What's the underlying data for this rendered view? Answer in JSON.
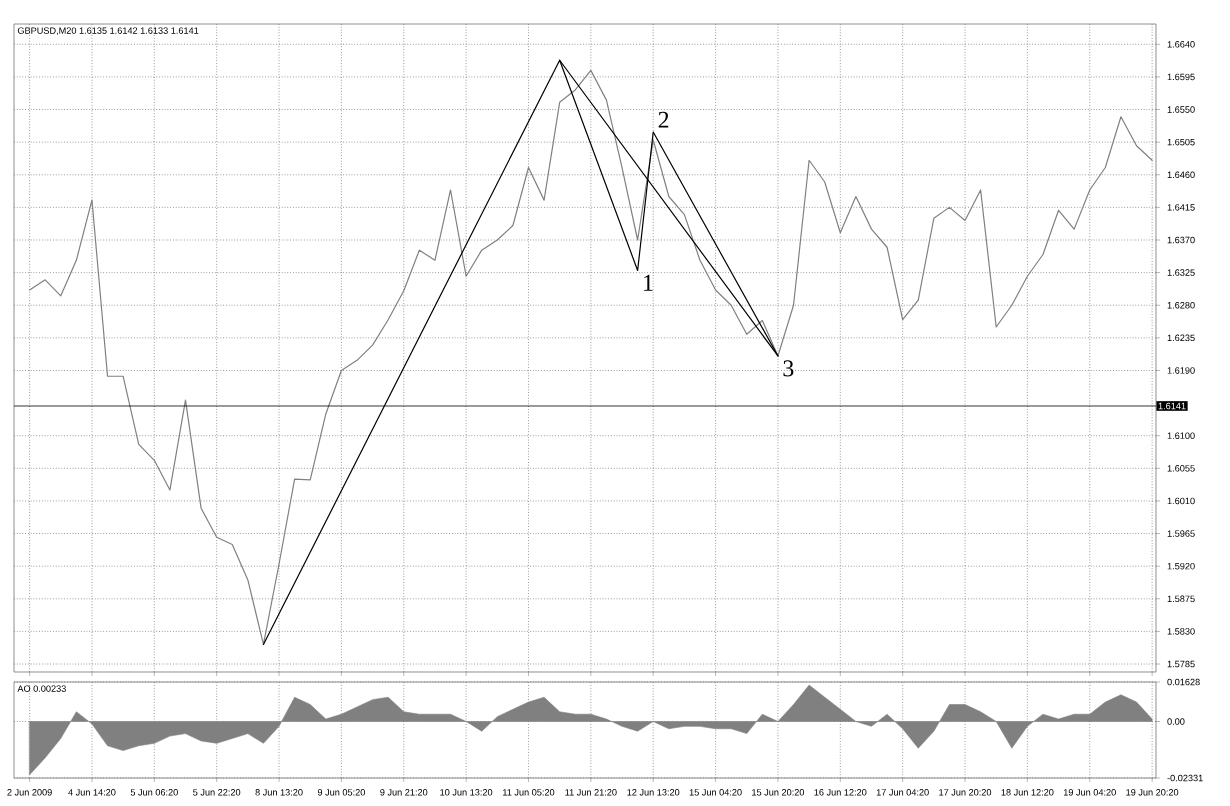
{
  "chart_data": [
    {
      "type": "line",
      "title": "GBPUSD,M20  1.6135 1.6142 1.6133 1.6141",
      "ylim": [
        1.5774,
        1.6668
      ],
      "grid": true,
      "tick_labels": "y",
      "categories": [
        null,
        null,
        null,
        null,
        null,
        null,
        null,
        null,
        null,
        null,
        null,
        null,
        null,
        null,
        null,
        null,
        null,
        null,
        null,
        null,
        null,
        null,
        null,
        null,
        null,
        null,
        null,
        null,
        null,
        null,
        null,
        null,
        null,
        null,
        null,
        null,
        null,
        null,
        null,
        null,
        null,
        null,
        null,
        null,
        null,
        null,
        null,
        null,
        null,
        null,
        null,
        null,
        null,
        null,
        null,
        null,
        null,
        null,
        null,
        null,
        null,
        null,
        null,
        null,
        null,
        null,
        null,
        null,
        null,
        null,
        null,
        null,
        null
      ],
      "yticks": [
        {
          "value": 1.664,
          "label": "1.6640"
        },
        {
          "value": 1.6595,
          "label": "1.6595"
        },
        {
          "value": 1.655,
          "label": "1.6550"
        },
        {
          "value": 1.6505,
          "label": "1.6505"
        },
        {
          "value": 1.646,
          "label": "1.6460"
        },
        {
          "value": 1.6415,
          "label": "1.6415"
        },
        {
          "value": 1.637,
          "label": "1.6370"
        },
        {
          "value": 1.6325,
          "label": "1.6325"
        },
        {
          "value": 1.628,
          "label": "1.6280"
        },
        {
          "value": 1.6235,
          "label": "1.6235"
        },
        {
          "value": 1.619,
          "label": "1.6190"
        },
        {
          "value": 1.61,
          "label": "1.6100"
        },
        {
          "value": 1.6055,
          "label": "1.6055"
        },
        {
          "value": 1.601,
          "label": "1.6010"
        },
        {
          "value": 1.5965,
          "label": "1.5965"
        },
        {
          "value": 1.592,
          "label": "1.5920"
        },
        {
          "value": 1.5875,
          "label": "1.5875"
        },
        {
          "value": 1.583,
          "label": "1.5830"
        },
        {
          "value": 1.5785,
          "label": "1.5785"
        }
      ],
      "series": [
        {
          "color": "#808080",
          "values": [
            1.6301,
            1.6315,
            1.6293,
            1.6342,
            1.6425,
            1.6182,
            1.6182,
            1.6088,
            1.6066,
            1.6025,
            1.6149,
            1.6,
            1.596,
            1.595,
            1.5901,
            1.5812,
            1.5923,
            1.604,
            1.6039,
            1.613,
            1.619,
            1.6204,
            1.6225,
            1.626,
            1.63,
            1.6356,
            1.6342,
            1.6439,
            1.632,
            1.6356,
            1.637,
            1.639,
            1.647,
            1.6425,
            1.656,
            1.6577,
            1.6604,
            1.6563,
            1.647,
            1.637,
            1.6508,
            1.643,
            1.6405,
            1.6342,
            1.6301,
            1.628,
            1.624,
            1.6259,
            1.621,
            1.628,
            1.648,
            1.645,
            1.638,
            1.643,
            1.6385,
            1.636,
            1.626,
            1.6287,
            1.64,
            1.6415,
            1.6397,
            1.6439,
            1.625,
            1.628,
            1.632,
            1.635,
            1.6411,
            1.6385,
            1.6439,
            1.647,
            1.654,
            1.65,
            1.648
          ]
        },
        {
          "color": "#000000",
          "values": [
            null,
            null,
            null,
            null,
            null,
            null,
            null,
            null,
            null,
            null,
            null,
            null,
            null,
            null,
            null,
            1.5812,
            null,
            null,
            null,
            null,
            null,
            null,
            null,
            null,
            null,
            null,
            null,
            null,
            null,
            null,
            null,
            null,
            null,
            null,
            1.6618,
            null,
            null,
            null,
            null,
            1.6328,
            1.6519,
            null,
            null,
            null,
            null,
            null,
            null,
            null,
            1.621,
            null,
            null,
            null,
            null,
            null,
            null,
            null,
            null,
            null,
            null,
            null,
            null,
            null,
            null,
            null,
            null,
            null,
            null,
            null,
            null,
            null,
            null,
            null,
            null
          ]
        },
        {
          "color": "#000000",
          "values": [
            null,
            null,
            null,
            null,
            null,
            null,
            null,
            null,
            null,
            null,
            null,
            null,
            null,
            null,
            null,
            null,
            null,
            null,
            null,
            null,
            null,
            null,
            null,
            null,
            null,
            null,
            null,
            null,
            null,
            null,
            null,
            null,
            null,
            null,
            1.6618,
            null,
            null,
            null,
            null,
            null,
            null,
            null,
            null,
            null,
            null,
            null,
            null,
            null,
            1.621,
            null,
            null,
            null,
            null,
            null,
            null,
            null,
            null,
            null,
            null,
            null,
            null,
            null,
            null,
            null,
            null,
            null,
            null,
            null,
            null,
            null,
            null,
            null,
            null
          ]
        }
      ],
      "annotations": [
        "1",
        "2",
        "3"
      ],
      "ref_lines": [
        {
          "axis": "y",
          "value": 1.6141,
          "label": "1.6141"
        }
      ]
    },
    {
      "type": "area",
      "title": "AO 0.00233",
      "ylim": [
        -0.02331,
        0.01628
      ],
      "grid": true,
      "categories": [
        "2 Jun 2009",
        null,
        null,
        null,
        "4 Jun 14:20",
        null,
        null,
        null,
        "5 Jun 06:20",
        null,
        null,
        null,
        "5 Jun 22:20",
        null,
        null,
        null,
        "8 Jun 13:20",
        null,
        null,
        null,
        "9 Jun 05:20",
        null,
        null,
        null,
        "9 Jun 21:20",
        null,
        null,
        null,
        "10 Jun 13:20",
        null,
        null,
        null,
        "11 Jun 05:20",
        null,
        null,
        null,
        "11 Jun 21:20",
        null,
        null,
        null,
        "12 Jun 13:20",
        null,
        null,
        null,
        "15 Jun 04:20",
        null,
        null,
        null,
        "15 Jun 20:20",
        null,
        null,
        null,
        "16 Jun 12:20",
        null,
        null,
        null,
        "17 Jun 04:20",
        null,
        null,
        null,
        "17 Jun 20:20",
        null,
        null,
        null,
        "18 Jun 12:20",
        null,
        null,
        null,
        "19 Jun 04:20",
        null,
        null,
        null,
        "19 Jun 20:20"
      ],
      "yticks": [
        0.01628,
        {
          "value": 0,
          "label": "0.00"
        },
        -0.02331
      ],
      "series": [
        {
          "color": "#808080",
          "values": [
            -0.022,
            -0.015,
            -0.007,
            0.004,
            -0.001,
            -0.01,
            -0.012,
            -0.01,
            -0.009,
            -0.006,
            -0.005,
            -0.008,
            -0.009,
            -0.007,
            -0.005,
            -0.009,
            -0.002,
            0.01,
            0.007,
            0.001,
            0.003,
            0.006,
            0.009,
            0.01,
            0.004,
            0.003,
            0.003,
            0.003,
            0.0,
            -0.004,
            0.002,
            0.005,
            0.008,
            0.01,
            0.004,
            0.003,
            0.003,
            0.001,
            -0.002,
            -0.004,
            0.0,
            -0.003,
            -0.002,
            -0.002,
            -0.003,
            -0.003,
            -0.005,
            0.003,
            0.0,
            0.007,
            0.015,
            0.01,
            0.005,
            0.0,
            -0.002,
            0.003,
            -0.003,
            -0.011,
            -0.004,
            0.007,
            0.007,
            0.004,
            0.0,
            -0.011,
            -0.002,
            0.003,
            0.001,
            0.003,
            0.003,
            0.008,
            0.011,
            0.008,
            0.001
          ]
        }
      ]
    }
  ]
}
